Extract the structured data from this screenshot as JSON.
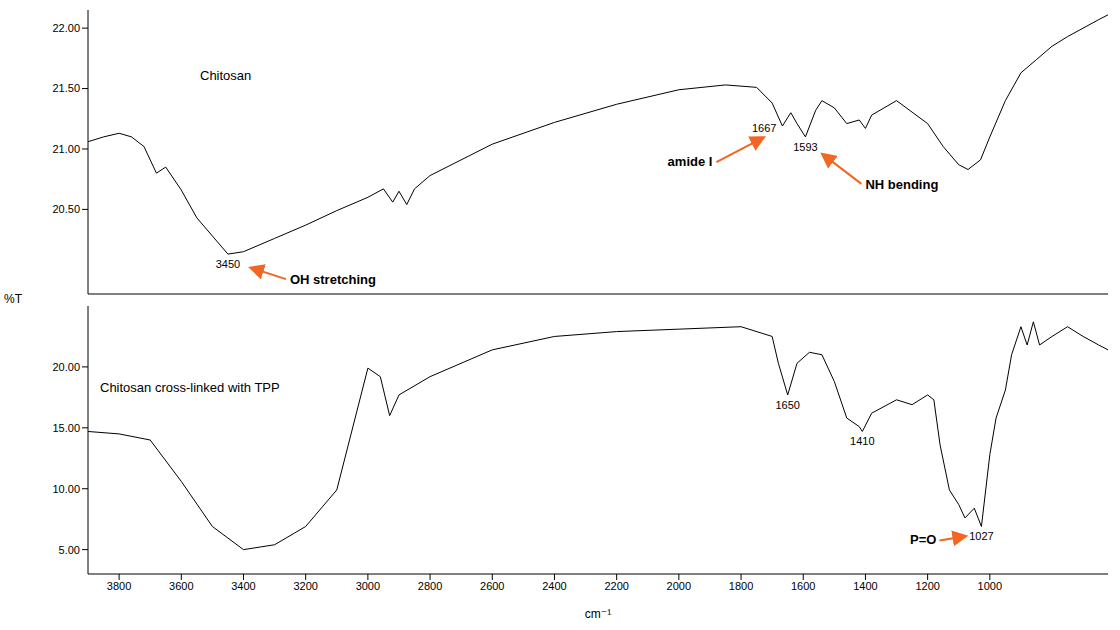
{
  "chart_data": [
    {
      "type": "line",
      "y_label": "%T",
      "tick_labels": "y",
      "xlim": [
        3900,
        620
      ],
      "xticks": [
        3800,
        3600,
        3400,
        3200,
        3000,
        2800,
        2600,
        2400,
        2200,
        2000,
        1800,
        1600,
        1400,
        1200,
        1000
      ],
      "ylim": [
        19.8,
        22.15
      ],
      "yticks": [
        {
          "value": 20.5,
          "label": "20.50"
        },
        {
          "value": 21,
          "label": "21.00"
        },
        {
          "value": 21.5,
          "label": "21.50"
        },
        {
          "value": 22,
          "label": "22.00"
        }
      ],
      "series": [
        {
          "name": "Chitosan",
          "color": "#000000",
          "x": [
            3900,
            3850,
            3800,
            3760,
            3720,
            3680,
            3650,
            3600,
            3550,
            3500,
            3450,
            3400,
            3300,
            3200,
            3100,
            3000,
            2950,
            2920,
            2900,
            2875,
            2850,
            2800,
            2600,
            2400,
            2200,
            2000,
            1850,
            1750,
            1700,
            1667,
            1640,
            1620,
            1593,
            1560,
            1540,
            1500,
            1460,
            1420,
            1400,
            1380,
            1300,
            1200,
            1150,
            1100,
            1070,
            1030,
            1000,
            950,
            900,
            850,
            800,
            750,
            700,
            650,
            620
          ],
          "values": [
            21.06,
            21.1,
            21.13,
            21.1,
            21.02,
            20.8,
            20.85,
            20.66,
            20.43,
            20.28,
            20.13,
            20.15,
            20.26,
            20.37,
            20.49,
            20.6,
            20.67,
            20.56,
            20.65,
            20.54,
            20.67,
            20.78,
            21.04,
            21.22,
            21.37,
            21.49,
            21.53,
            21.51,
            21.38,
            21.19,
            21.3,
            21.21,
            21.1,
            21.32,
            21.4,
            21.34,
            21.21,
            21.24,
            21.17,
            21.28,
            21.4,
            21.21,
            21.02,
            20.87,
            20.83,
            20.91,
            21.1,
            21.4,
            21.63,
            21.74,
            21.85,
            21.93,
            22.0,
            22.07,
            22.11
          ]
        }
      ],
      "annotations": [
        {
          "x": 3450,
          "y": 20.13,
          "label": "3450",
          "note": "OH stretching"
        },
        {
          "x": 1667,
          "y": 21.19,
          "label": "1667",
          "note": "amide I"
        },
        {
          "x": 1593,
          "y": 21.1,
          "label": "1593",
          "note": "NH bending"
        }
      ]
    },
    {
      "type": "line",
      "x_label": "cm⁻¹",
      "xlim": [
        3900,
        620
      ],
      "xticks": [
        3800,
        3600,
        3400,
        3200,
        3000,
        2800,
        2600,
        2400,
        2200,
        2000,
        1800,
        1600,
        1400,
        1200,
        1000
      ],
      "ylim": [
        3,
        25
      ],
      "yticks": [
        {
          "value": 5,
          "label": "5.00"
        },
        {
          "value": 10,
          "label": "10.00"
        },
        {
          "value": 15,
          "label": "15.00"
        },
        {
          "value": 20,
          "label": "20.00"
        }
      ],
      "series": [
        {
          "name": "Chitosan cross-linked with TPP",
          "color": "#000000",
          "x": [
            3900,
            3800,
            3700,
            3600,
            3500,
            3400,
            3300,
            3200,
            3100,
            3000,
            2960,
            2930,
            2900,
            2800,
            2600,
            2400,
            2200,
            2000,
            1800,
            1700,
            1680,
            1650,
            1620,
            1580,
            1540,
            1500,
            1460,
            1420,
            1410,
            1380,
            1300,
            1250,
            1200,
            1180,
            1160,
            1130,
            1100,
            1080,
            1050,
            1027,
            1000,
            980,
            950,
            930,
            900,
            880,
            860,
            840,
            800,
            750,
            700,
            650,
            620
          ],
          "values": [
            14.7,
            14.5,
            14.0,
            10.6,
            6.9,
            5.0,
            5.4,
            6.9,
            9.9,
            19.9,
            19.2,
            16.0,
            17.7,
            19.2,
            21.4,
            22.5,
            22.9,
            23.1,
            23.3,
            22.5,
            20.3,
            17.7,
            20.3,
            21.2,
            21.0,
            18.8,
            15.8,
            15.1,
            14.7,
            16.2,
            17.3,
            16.9,
            17.7,
            17.3,
            13.6,
            9.9,
            8.7,
            7.6,
            8.4,
            6.9,
            12.8,
            15.8,
            18.1,
            21.0,
            23.3,
            21.8,
            23.7,
            21.8,
            22.5,
            23.3,
            22.5,
            21.8,
            21.4
          ]
        }
      ],
      "annotations": [
        {
          "x": 1650,
          "y": 17.7,
          "label": "1650"
        },
        {
          "x": 1410,
          "y": 14.7,
          "label": "1410"
        },
        {
          "x": 1027,
          "y": 6.9,
          "label": "1027",
          "note": "P=O"
        }
      ]
    }
  ]
}
